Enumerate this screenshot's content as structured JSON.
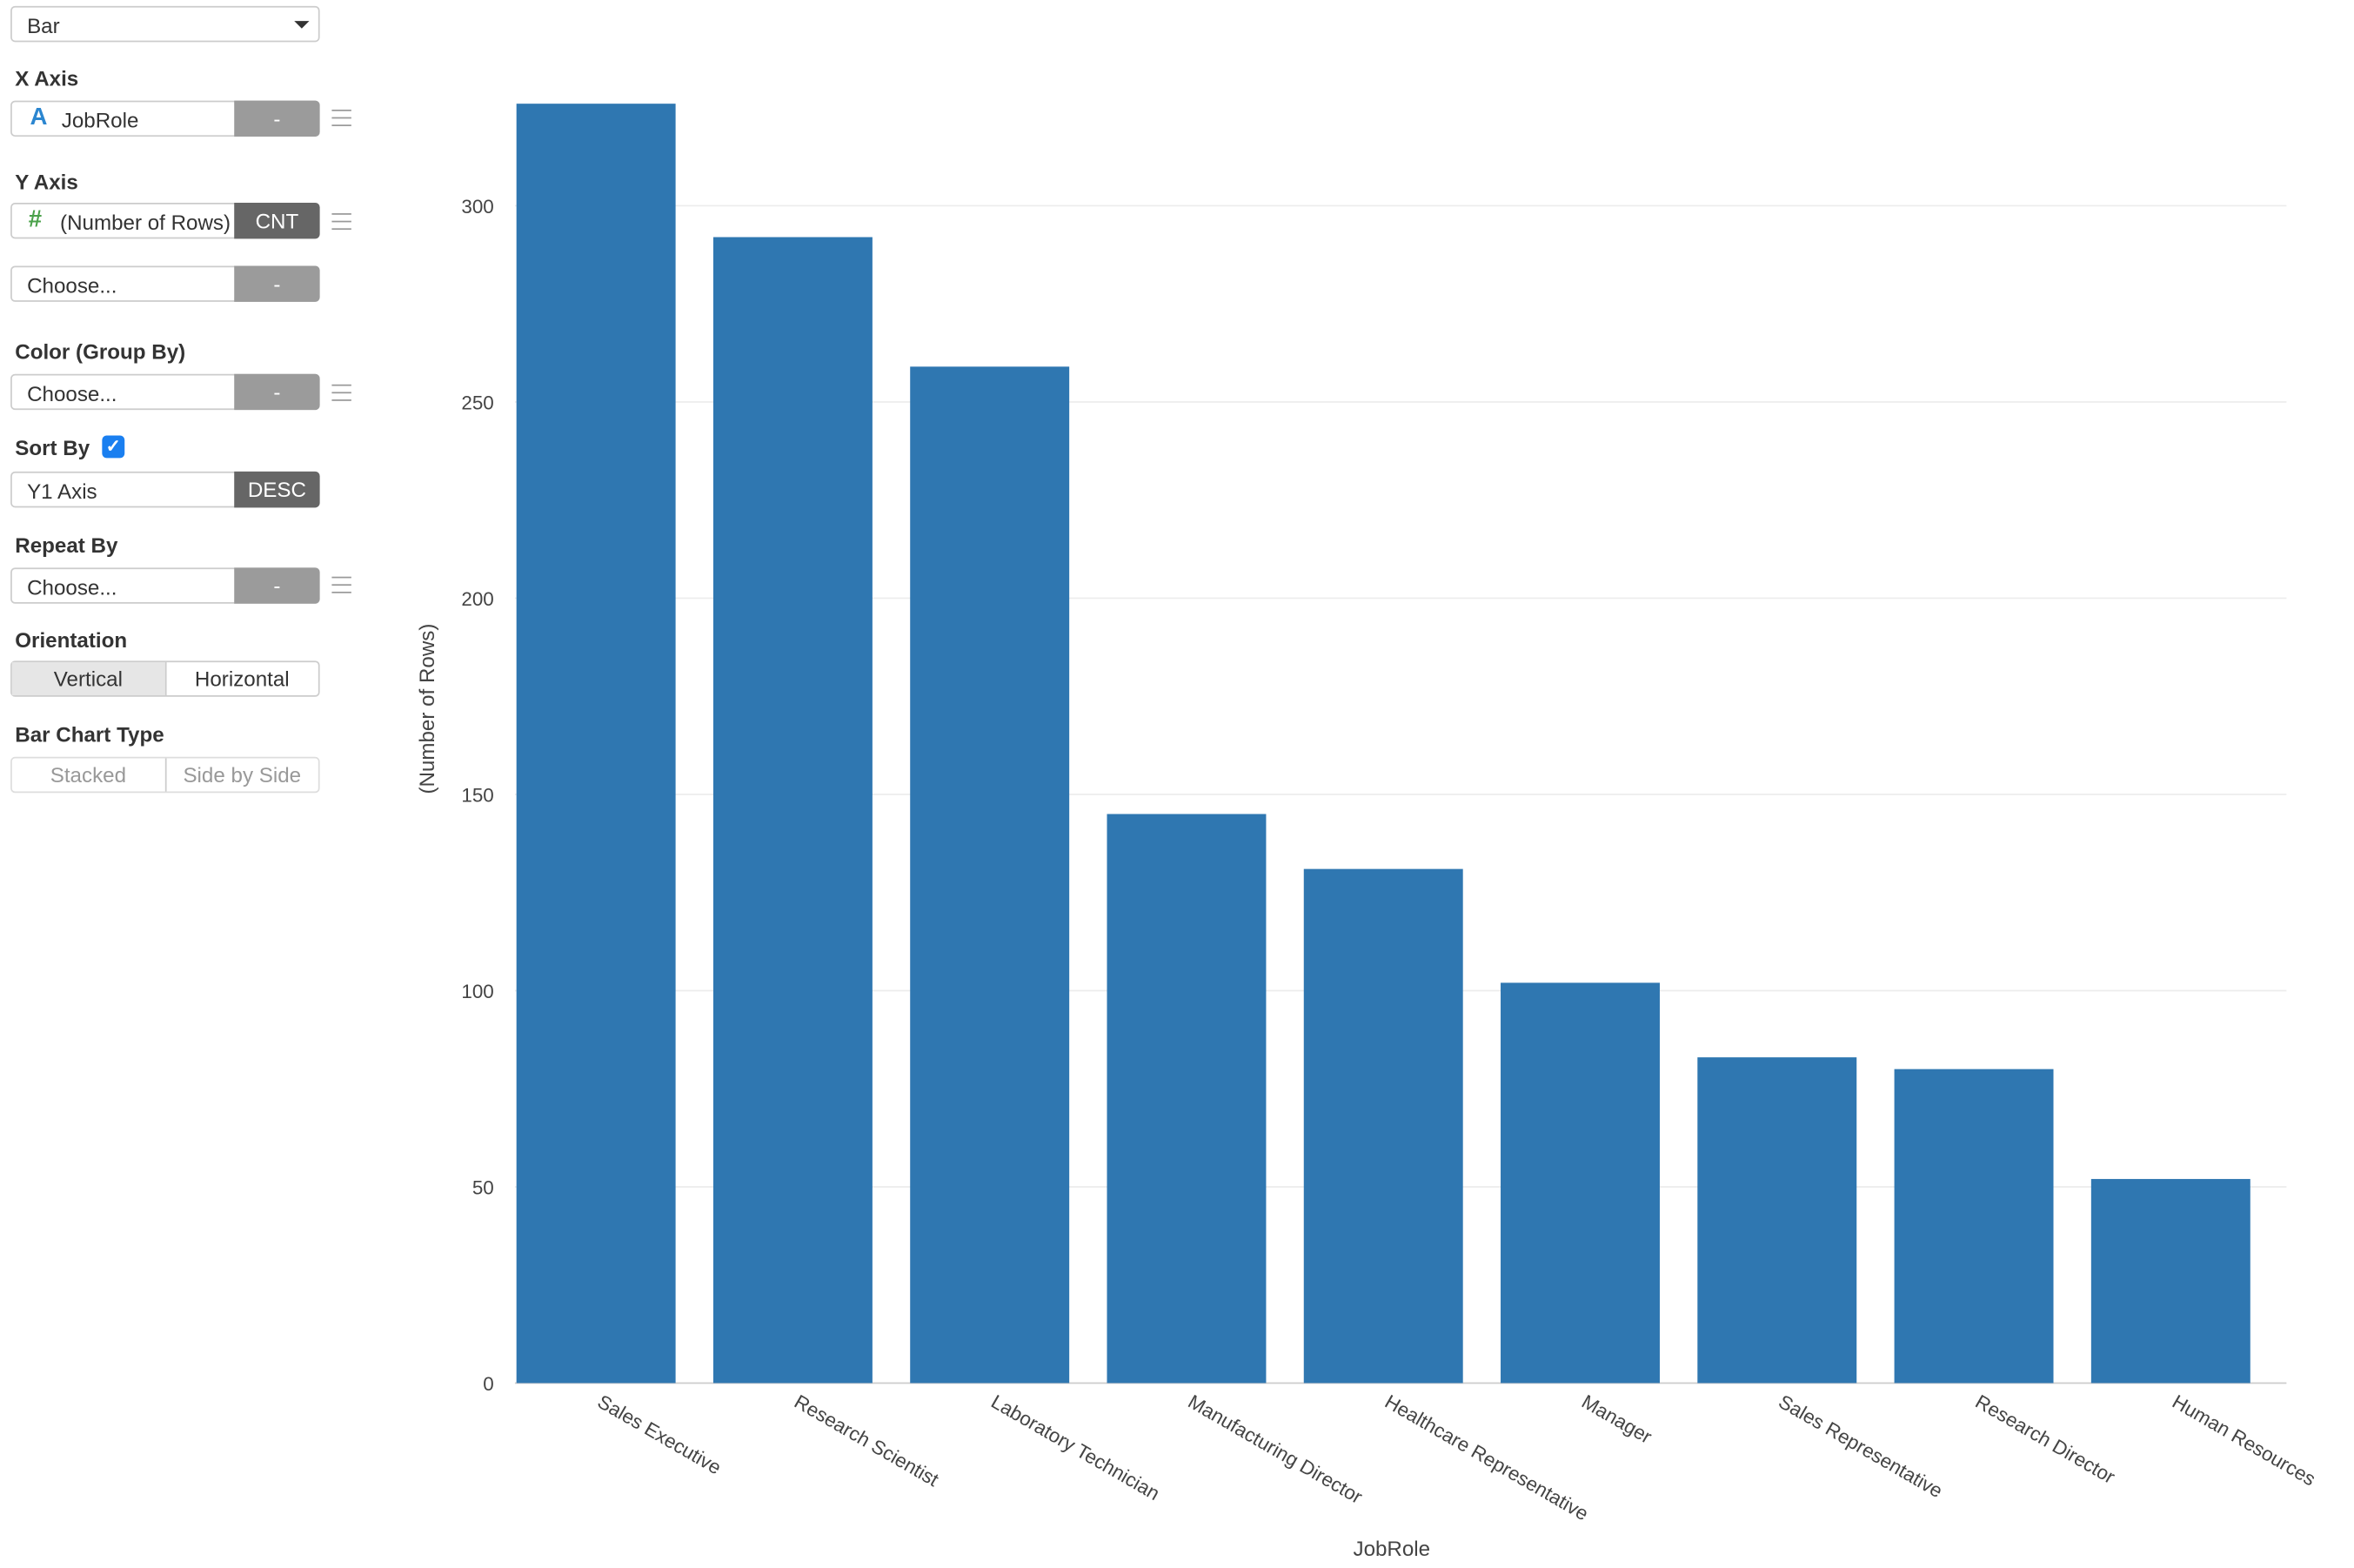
{
  "panel": {
    "chart_type": "Bar",
    "x_axis": {
      "label": "X Axis",
      "icon": "text-type-icon",
      "field": "JobRole",
      "agg": "-"
    },
    "y_axis": {
      "label": "Y Axis",
      "icon": "number-type-icon",
      "field": "(Number of Rows)",
      "agg": "CNT",
      "field2": "Choose...",
      "agg2": "-"
    },
    "color": {
      "label": "Color (Group By)",
      "field": "Choose...",
      "agg": "-"
    },
    "sort": {
      "label": "Sort By",
      "checked": true,
      "field": "Y1 Axis",
      "order": "DESC"
    },
    "repeat": {
      "label": "Repeat By",
      "field": "Choose...",
      "agg": "-"
    },
    "orientation": {
      "label": "Orientation",
      "options": [
        "Vertical",
        "Horizontal"
      ],
      "selected": "Vertical"
    },
    "bar_type": {
      "label": "Bar Chart Type",
      "options": [
        "Stacked",
        "Side by Side"
      ]
    }
  },
  "chart_data": {
    "type": "bar",
    "categories": [
      "Sales Executive",
      "Research Scientist",
      "Laboratory Technician",
      "Manufacturing Director",
      "Healthcare Representative",
      "Manager",
      "Sales Representative",
      "Research Director",
      "Human Resources"
    ],
    "values": [
      326,
      292,
      259,
      145,
      131,
      102,
      83,
      80,
      52
    ],
    "xlabel": "JobRole",
    "ylabel": "(Number of Rows)",
    "ylim": [
      0,
      330
    ],
    "yticks": [
      0,
      50,
      100,
      150,
      200,
      250,
      300
    ],
    "grid": true,
    "bar_color": "#2f77b1"
  }
}
